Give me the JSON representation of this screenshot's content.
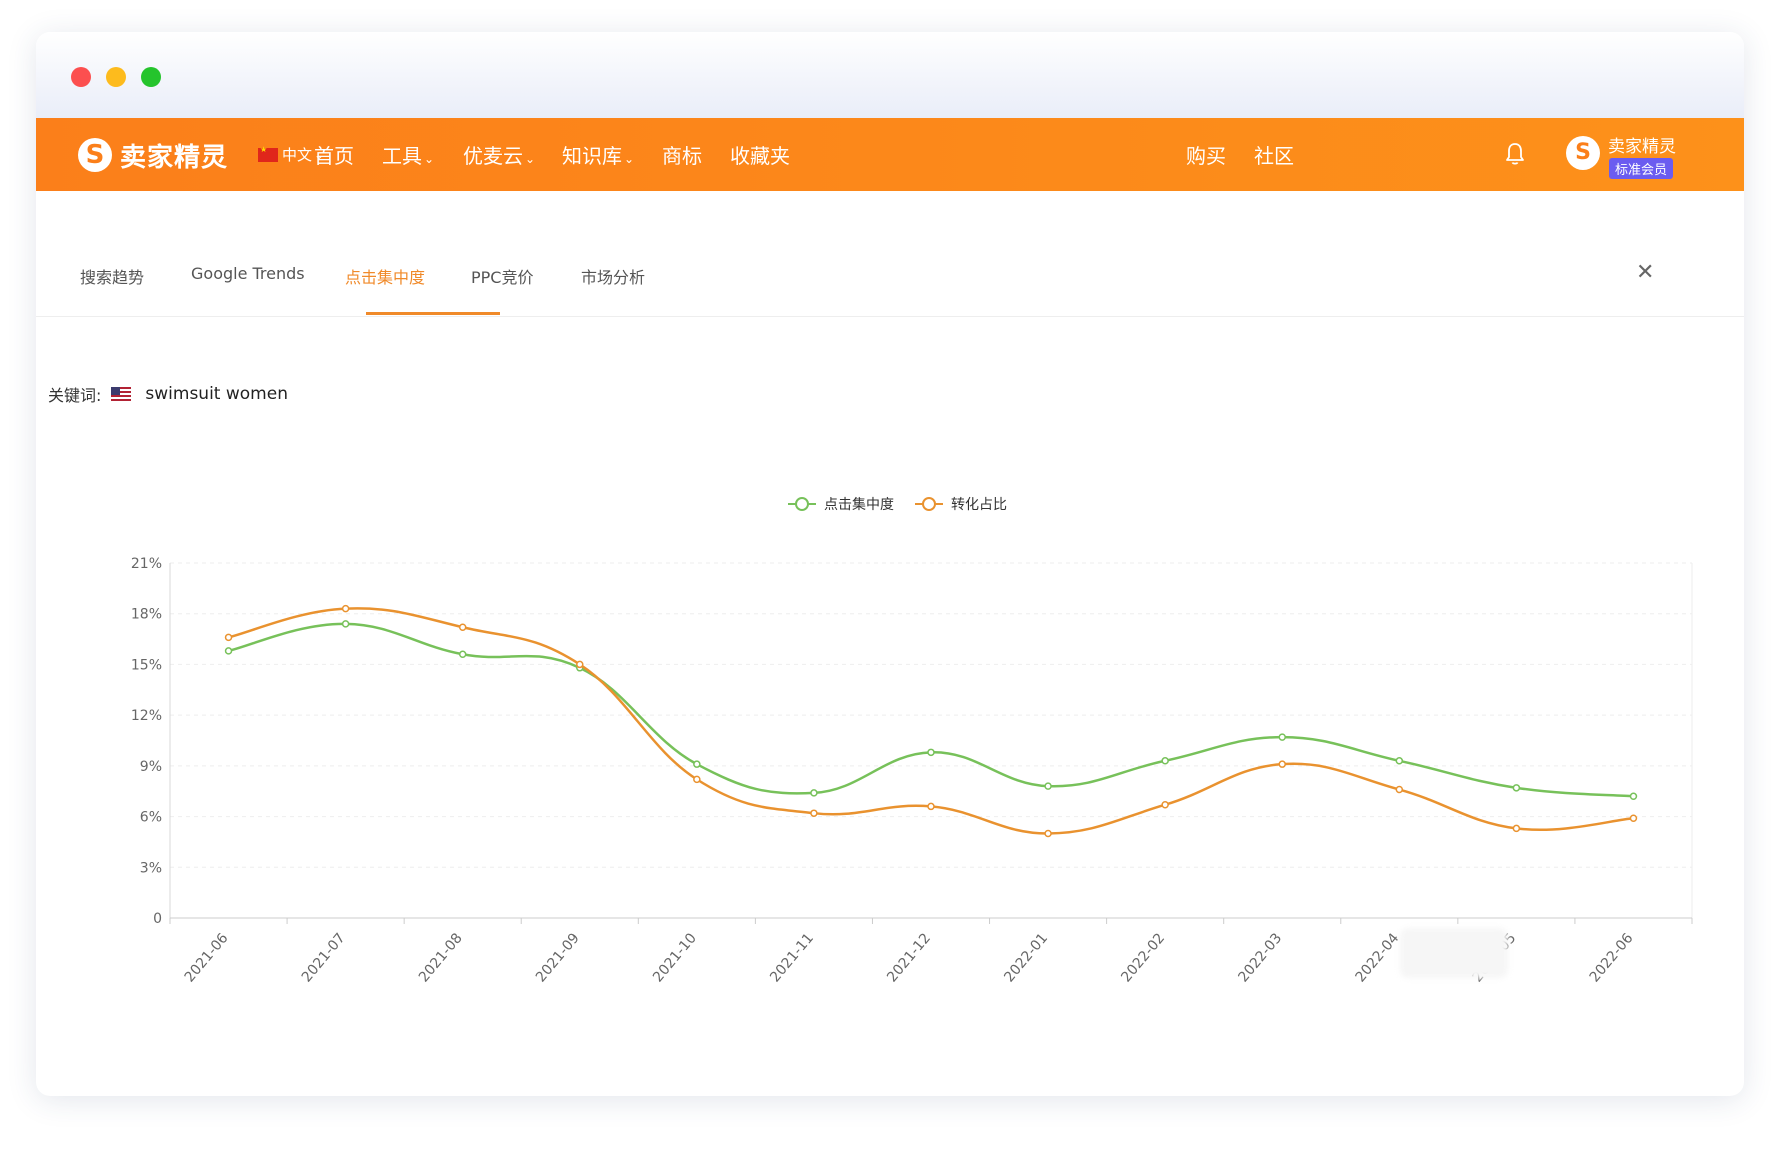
{
  "window": {
    "title_dots": [
      "close",
      "minimize",
      "maximize"
    ]
  },
  "navbar": {
    "logo_text": "卖家精灵",
    "logo_mark": "S",
    "language": "中文",
    "items": [
      {
        "label": "首页",
        "has_dropdown": false
      },
      {
        "label": "工具",
        "has_dropdown": true
      },
      {
        "label": "优麦云",
        "has_dropdown": true
      },
      {
        "label": "知识库",
        "has_dropdown": true
      },
      {
        "label": "商标",
        "has_dropdown": false
      },
      {
        "label": "收藏夹",
        "has_dropdown": false
      }
    ],
    "right_items": [
      {
        "label": "购买"
      },
      {
        "label": "社区"
      }
    ],
    "bell_icon": "bell-icon",
    "user": {
      "name": "卖家精灵",
      "badge": "标准会员"
    },
    "brand_color": "#fb7f1a"
  },
  "tabs": {
    "items": [
      {
        "label": "搜索趋势",
        "active": false
      },
      {
        "label": "Google Trends",
        "active": false
      },
      {
        "label": "点击集中度",
        "active": true
      },
      {
        "label": "PPC竞价",
        "active": false
      },
      {
        "label": "市场分析",
        "active": false
      }
    ],
    "active_color": "#f08a2a",
    "close_icon": "close-icon"
  },
  "keyword": {
    "label": "关键词:",
    "flag": "us-flag-icon",
    "value": "swimsuit women"
  },
  "chart_data": {
    "type": "line",
    "smooth": true,
    "categories": [
      "2021-06",
      "2021-07",
      "2021-08",
      "2021-09",
      "2021-10",
      "2021-11",
      "2021-12",
      "2022-01",
      "2022-02",
      "2022-03",
      "2022-04",
      "2022-05",
      "2022-06"
    ],
    "series": [
      {
        "name": "点击集中度",
        "color": "#77c15a",
        "values": [
          15.8,
          17.4,
          15.6,
          14.8,
          9.1,
          7.4,
          9.8,
          7.8,
          9.3,
          10.7,
          9.3,
          7.7,
          7.2
        ]
      },
      {
        "name": "转化占比",
        "color": "#e9922f",
        "values": [
          16.6,
          18.3,
          17.2,
          15.0,
          8.2,
          6.2,
          6.6,
          5.0,
          6.7,
          9.1,
          7.6,
          5.3,
          5.9
        ]
      }
    ],
    "y_ticks": [
      "0",
      "3%",
      "6%",
      "9%",
      "12%",
      "15%",
      "18%",
      "21%"
    ],
    "ylim": [
      0,
      21
    ],
    "legend_position": "top-center",
    "grid": true
  }
}
